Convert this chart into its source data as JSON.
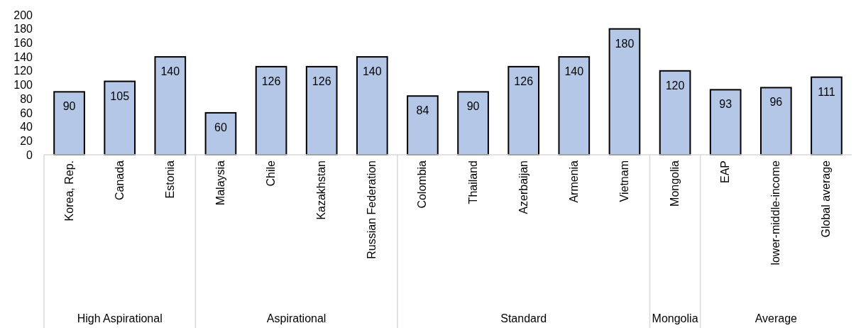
{
  "chart_data": {
    "type": "bar",
    "categories": [
      "Korea, Rep.",
      "Canada",
      "Estonia",
      "Malaysia",
      "Chile",
      "Kazakhstan",
      "Russian Federation",
      "Colombia",
      "Thailand",
      "Azerbaijan",
      "Armenia",
      "Vietnam",
      "Mongolia",
      "EAP",
      "lower-middle-income",
      "Global average"
    ],
    "values": [
      90,
      105,
      140,
      60,
      126,
      126,
      140,
      84,
      90,
      126,
      140,
      180,
      120,
      93,
      96,
      111
    ],
    "color": "#b4c7e7",
    "ylim": [
      0,
      200
    ],
    "yticks": [
      0,
      20,
      40,
      60,
      80,
      100,
      120,
      140,
      160,
      180,
      200
    ],
    "grid": false,
    "data_labels": true,
    "annotations": [
      "High Aspirational",
      "Aspirational",
      "Standard",
      "Mongolia",
      "Average"
    ]
  }
}
